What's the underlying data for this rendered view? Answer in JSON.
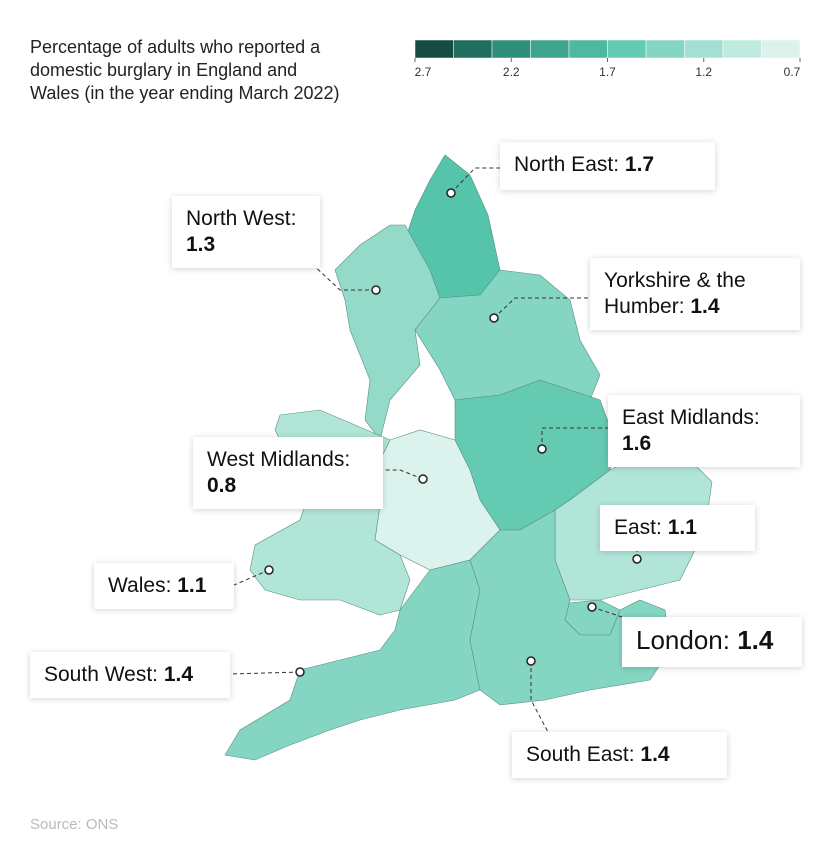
{
  "chart_data": {
    "type": "choropleth",
    "title": "Percentage of adults who reported a domestic burglary in England and Wales (in the year ending March 2022)",
    "colorbar": {
      "lim": [
        2.7,
        0.7
      ],
      "ticks": [
        2.7,
        2.2,
        1.7,
        1.2,
        0.7
      ],
      "colors": [
        "#0f3d33",
        "#2f8f7a",
        "#55c4aa",
        "#a3e0d1",
        "#eaf8f4"
      ]
    },
    "regions": [
      {
        "label": "North East:",
        "value": 1.7
      },
      {
        "label": "North West:",
        "value": 1.3
      },
      {
        "label": "Yorkshire & the Humber:",
        "value": 1.4
      },
      {
        "label": "East Midlands:",
        "value": 1.6
      },
      {
        "label": "West Midlands:",
        "value": 0.8
      },
      {
        "label": "East:",
        "value": 1.1
      },
      {
        "label": "Wales:",
        "value": 1.1
      },
      {
        "label": "London:",
        "value": 1.4
      },
      {
        "label": "South West:",
        "value": 1.4
      },
      {
        "label": "South East:",
        "value": 1.4
      }
    ],
    "source": "Source: ONS"
  }
}
